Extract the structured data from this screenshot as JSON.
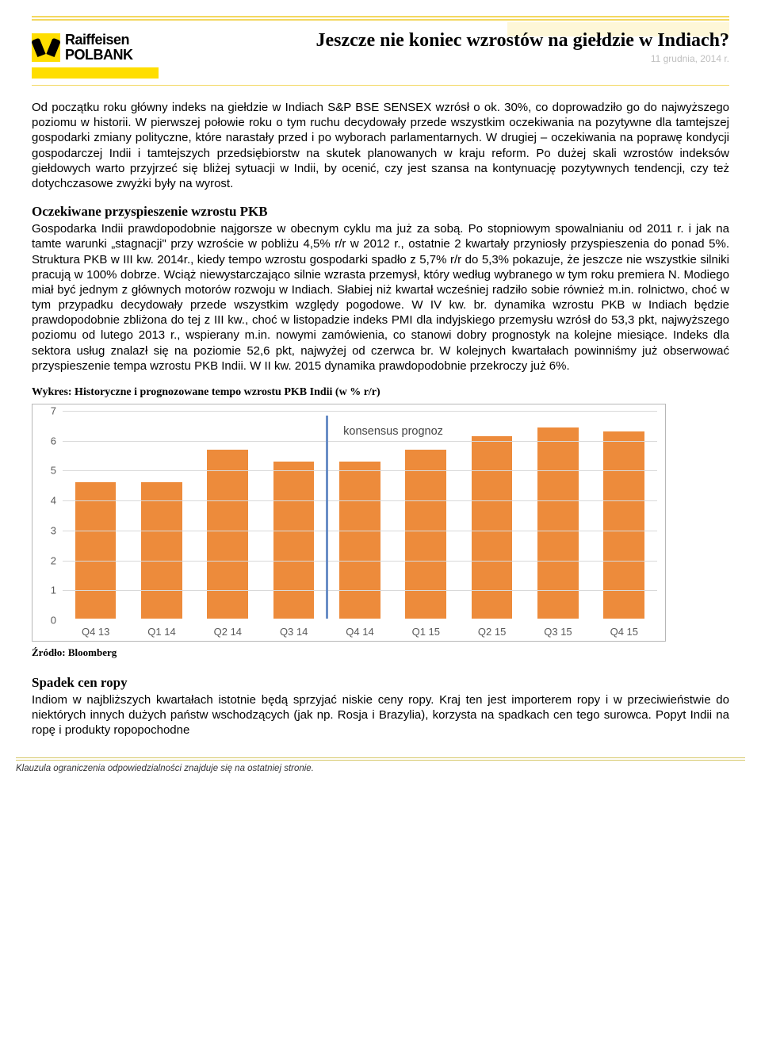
{
  "logo": {
    "line1": "Raiffeisen",
    "line2": "POLBANK"
  },
  "header": {
    "title": "Jeszcze nie koniec wzrostów na giełdzie w Indiach?",
    "date": "11 grudnia, 2014 r."
  },
  "paragraphs": {
    "p1": "Od początku roku główny indeks na giełdzie w Indiach S&P BSE SENSEX wzrósł o ok. 30%, co doprowadziło go do najwyższego poziomu w historii. W pierwszej połowie roku o tym ruchu decydowały przede wszystkim oczekiwania na pozytywne dla tamtejszej gospodarki zmiany polityczne, które narastały przed i po wyborach parlamentarnych. W drugiej – oczekiwania na poprawę kondycji gospodarczej Indii i tamtejszych przedsiębiorstw na skutek planowanych w kraju reform. Po dużej skali wzrostów indeksów giełdowych warto przyjrzeć się bliżej sytuacji w Indii, by ocenić, czy jest szansa na kontynuację pozytywnych tendencji, czy też dotychczasowe zwyżki były na wyrost.",
    "h2": "Oczekiwane przyspieszenie wzrostu PKB",
    "p2": "Gospodarka Indii prawdopodobnie najgorsze w obecnym cyklu ma już za sobą. Po stopniowym spowalnianiu od 2011 r. i jak na tamte warunki „stagnacji\" przy wzroście w pobliżu 4,5% r/r w 2012 r., ostatnie 2 kwartały przyniosły przyspieszenia do ponad 5%. Struktura PKB w III kw. 2014r., kiedy tempo wzrostu gospodarki spadło z 5,7% r/r do 5,3% pokazuje, że jeszcze nie wszystkie silniki pracują w 100% dobrze. Wciąż niewystarczająco silnie wzrasta przemysł, który według wybranego w tym roku premiera N. Modiego miał być jednym z głównych motorów rozwoju w Indiach. Słabiej niż kwartał wcześniej radziło sobie również m.in. rolnictwo, choć w tym przypadku decydowały przede wszystkim względy pogodowe. W IV kw. br. dynamika wzrostu PKB w Indiach będzie prawdopodobnie zbliżona do tej z III kw., choć w listopadzie indeks PMI dla indyjskiego przemysłu wzrósł do 53,3 pkt, najwyższego poziomu od lutego 2013 r., wspierany m.in. nowymi zamówienia, co stanowi dobry prognostyk na kolejne miesiące. Indeks dla sektora usług znalazł się na poziomie 52,6 pkt, najwyżej od czerwca br. W kolejnych kwartałach powinniśmy już obserwować przyspieszenie tempa wzrostu PKB Indii. W II kw. 2015 dynamika prawdopodobnie przekroczy już 6%.",
    "h3": "Spadek cen ropy",
    "p3": "Indiom w najbliższych kwartałach istotnie będą sprzyjać niskie ceny ropy. Kraj ten jest importerem ropy i w przeciwieństwie do niektórych innych dużych państw wschodzących (jak np. Rosja i Brazylia), korzysta na spadkach cen tego surowca. Popyt Indii na ropę i produkty ropopochodne"
  },
  "chart": {
    "title": "Wykres: Historyczne i prognozowane tempo wzrostu PKB Indii (w % r/r)",
    "type": "bar",
    "categories": [
      "Q4 13",
      "Q1 14",
      "Q2 14",
      "Q3 14",
      "Q4 14",
      "Q1 15",
      "Q2 15",
      "Q3 15",
      "Q4 15"
    ],
    "values": [
      4.6,
      4.6,
      5.7,
      5.3,
      5.3,
      5.7,
      6.15,
      6.45,
      6.3
    ],
    "bar_color": "#ed8b3b",
    "ylim": [
      0,
      7
    ],
    "ytick_step": 1,
    "grid_color": "#d9d9d9",
    "border_color": "#b7b7b7",
    "background_color": "#ffffff",
    "label_fontsize": 13,
    "label_color": "#595959",
    "annotation": {
      "text": "konsensus prognoz",
      "x_after_index": 4
    },
    "forecast_divider": {
      "after_index": 4,
      "color": "#6a8ec6",
      "width": 3
    },
    "source": "Źródło: Bloomberg"
  },
  "footer": {
    "text": "Klauzula ograniczenia odpowiedzialności znajduje się na ostatniej stronie."
  },
  "colors": {
    "yellow_brand": "#ffde00",
    "yellow_rule": "#f3d860",
    "yellow_pale": "#fef7d8"
  }
}
